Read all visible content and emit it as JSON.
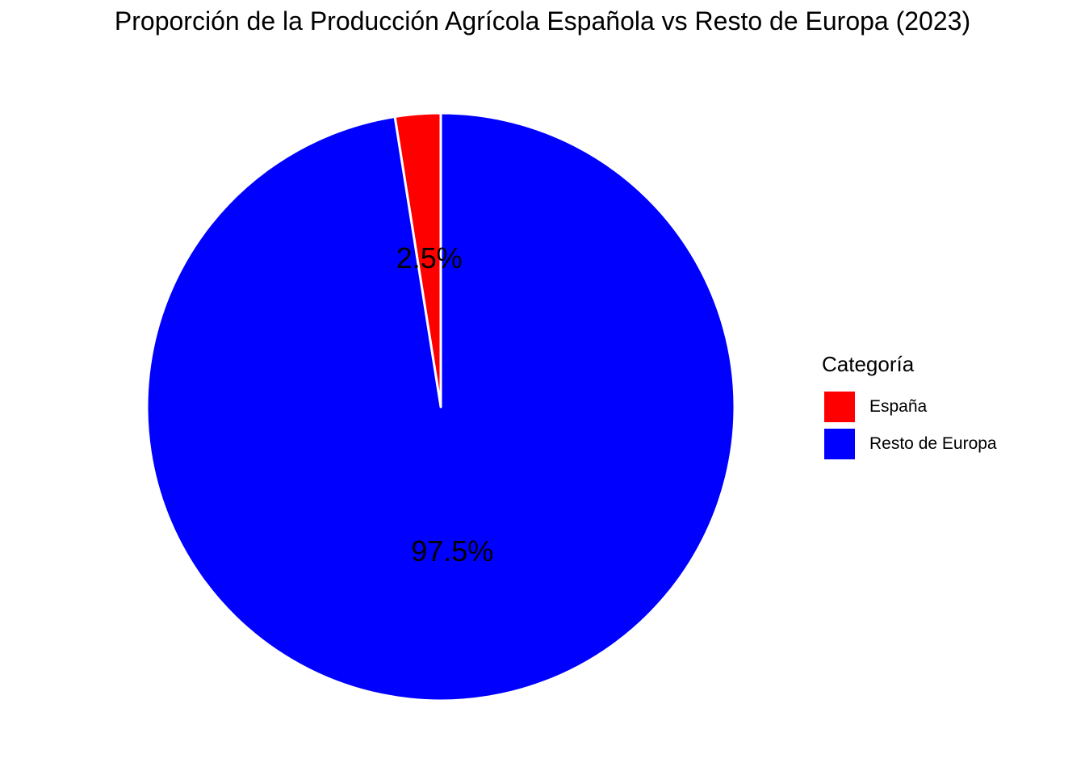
{
  "chart_data": {
    "type": "pie",
    "title": "Proporción de la Producción Agrícola Española vs Resto de Europa (2023)",
    "categories": [
      "España",
      "Resto de Europa"
    ],
    "values": [
      2.5,
      97.5
    ],
    "labels": [
      "2.5%",
      "97.5%"
    ],
    "colors": [
      "#ff0000",
      "#0000ff"
    ],
    "slice_border_color": "#ffffff",
    "legend": {
      "title": "Categoría",
      "placement": "right"
    }
  }
}
